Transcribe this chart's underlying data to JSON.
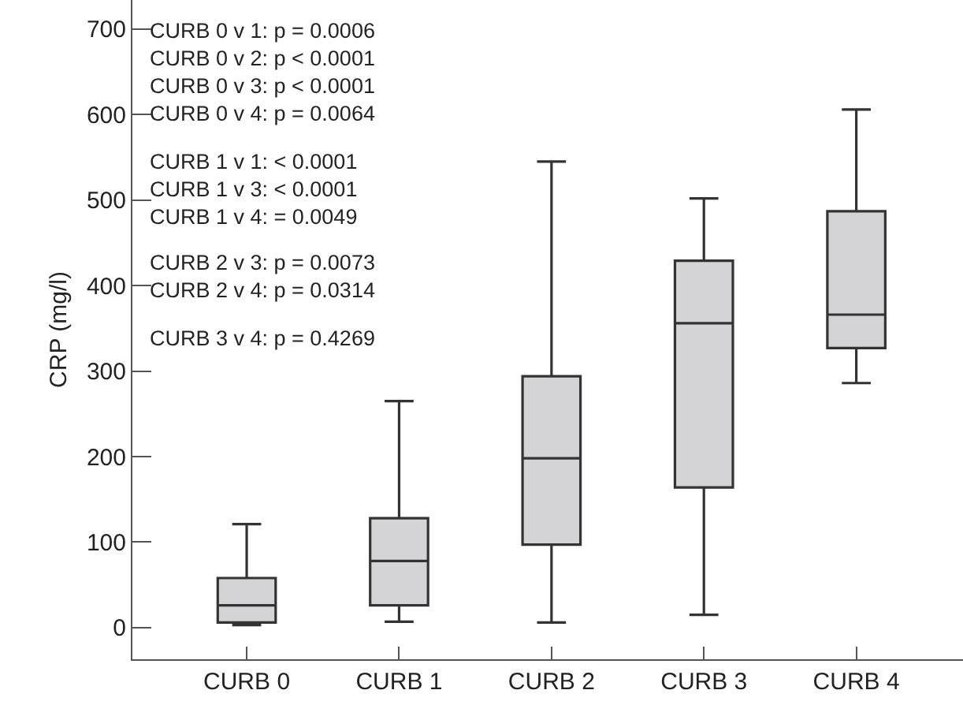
{
  "chart_data": {
    "type": "box",
    "ylabel": "CRP (mg/l)",
    "categories": [
      "CURB 0",
      "CURB 1",
      "CURB 2",
      "CURB 3",
      "CURB 4"
    ],
    "boxes": [
      {
        "low": 3,
        "q1": 6,
        "median": 26,
        "q3": 58,
        "high": 121
      },
      {
        "low": 7,
        "q1": 26,
        "median": 78,
        "q3": 128,
        "high": 265
      },
      {
        "low": 6,
        "q1": 97,
        "median": 198,
        "q3": 294,
        "high": 545
      },
      {
        "low": 15,
        "q1": 164,
        "median": 356,
        "q3": 429,
        "high": 502
      },
      {
        "low": 286,
        "q1": 327,
        "median": 366,
        "q3": 487,
        "high": 606
      }
    ],
    "color": "#d4d4d6",
    "ylim": [
      -37,
      734
    ],
    "yticks": [
      0,
      100,
      200,
      300,
      400,
      500,
      600,
      700
    ],
    "annotations": [
      "CURB 0 v 1: p = 0.0006\nCURB 0 v 2: p < 0.0001\nCURB 0 v 3: p < 0.0001\nCURB 0 v 4: p = 0.0064",
      "CURB 1 v 1: < 0.0001\nCURB 1 v 3: < 0.0001\nCURB 1 v 4: = 0.0049",
      "CURB 2 v 3: p = 0.0073\nCURB 2 v 4: p = 0.0314",
      "CURB 3 v 4: p = 0.4269"
    ],
    "grid": false
  }
}
